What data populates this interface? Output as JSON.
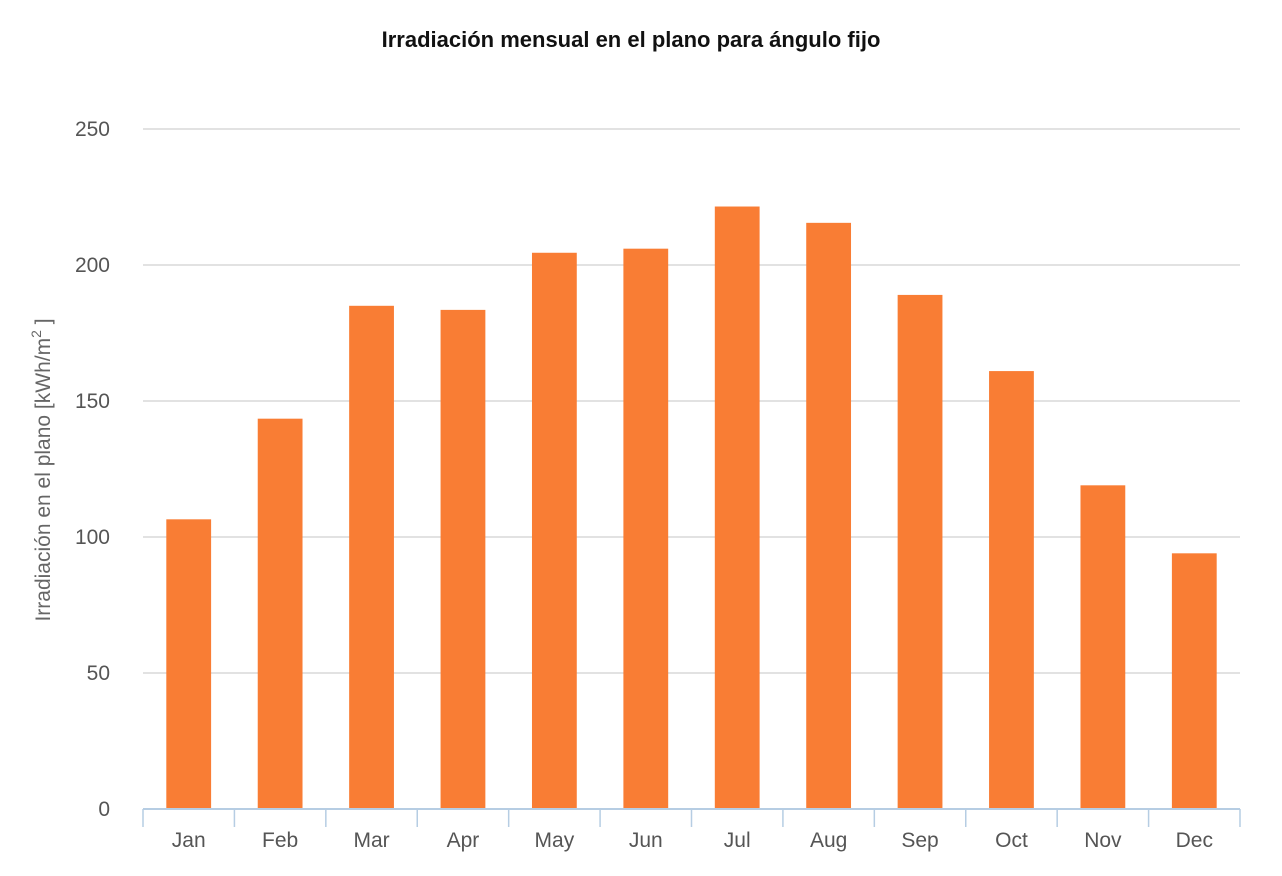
{
  "chart_data": {
    "type": "bar",
    "title": "Irradiación mensual en el plano para ángulo fijo",
    "xlabel": "",
    "ylabel": "Irradiación en el plano [kWh/m",
    "ylabel_superscript": "2",
    "ylabel_suffix": " ]",
    "categories": [
      "Jan",
      "Feb",
      "Mar",
      "Apr",
      "May",
      "Jun",
      "Jul",
      "Aug",
      "Sep",
      "Oct",
      "Nov",
      "Dec"
    ],
    "values": [
      106.5,
      143.5,
      185,
      183.5,
      204.5,
      206,
      221.5,
      215.5,
      189,
      161,
      119,
      94
    ],
    "ylim": [
      0,
      250
    ],
    "yticks": [
      "0",
      "50",
      "100",
      "150",
      "200",
      "250"
    ],
    "grid": true,
    "bar_color": "#f97d34"
  }
}
